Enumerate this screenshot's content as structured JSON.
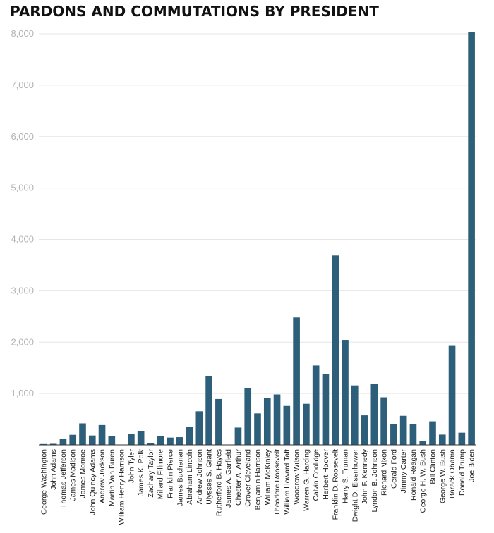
{
  "chart_data": {
    "type": "bar",
    "title": "PARDONS AND COMMUTATIONS BY PRESIDENT",
    "xlabel": "",
    "ylabel": "",
    "ylim": [
      0,
      8000
    ],
    "yticks": [
      1000,
      2000,
      3000,
      4000,
      5000,
      6000,
      7000,
      8000
    ],
    "ytick_labels": [
      "1,000",
      "2,000",
      "3,000",
      "4,000",
      "5,000",
      "6,000",
      "7,000",
      "8,000"
    ],
    "grid": true,
    "bar_color": "#2e5f7a",
    "categories": [
      "George Washington",
      "John Adams",
      "Thomas Jefferson",
      "James Madison",
      "James Monroe",
      "John Quincy Adams",
      "Andrew Jackson",
      "Martin Van Buren",
      "William Henry Harrison",
      "John Tyler",
      "James K. Polk",
      "Zachary Taylor",
      "Millard Fillmore",
      "Franklin Pierce",
      "James Buchanan",
      "Abraham Lincoln",
      "Andrew Johnson",
      "Ulysses S. Grant",
      "Rutherford B. Hayes",
      "James A. Garfield",
      "Chester A. Arthur",
      "Grover Cleveland",
      "Benjamin Harrison",
      "William McKinley",
      "Theodore Roosevelt",
      "William Howard Taft",
      "Woodrow Wilson",
      "Warren G. Harding",
      "Calvin Coolidge",
      "Herbert Hoover",
      "Franklin D. Roosevelt",
      "Harry S. Truman",
      "Dwight D. Eisenhower",
      "John F. Kennedy",
      "Lyndon B. Johnson",
      "Richard Nixon",
      "Gerald Ford",
      "Jimmy Carter",
      "Ronald Reagan",
      "George H. W. Bush",
      "Bill Clinton",
      "George W. Bush",
      "Barack Obama",
      "Donald Trump",
      "Joe Biden"
    ],
    "values": [
      16,
      21,
      119,
      196,
      419,
      183,
      386,
      168,
      0,
      209,
      268,
      38,
      170,
      142,
      150,
      343,
      654,
      1332,
      893,
      0,
      337,
      1107,
      613,
      918,
      981,
      758,
      2480,
      800,
      1545,
      1385,
      3687,
      2044,
      1157,
      575,
      1187,
      926,
      409,
      566,
      406,
      77,
      459,
      200,
      1927,
      238,
      8031
    ]
  }
}
